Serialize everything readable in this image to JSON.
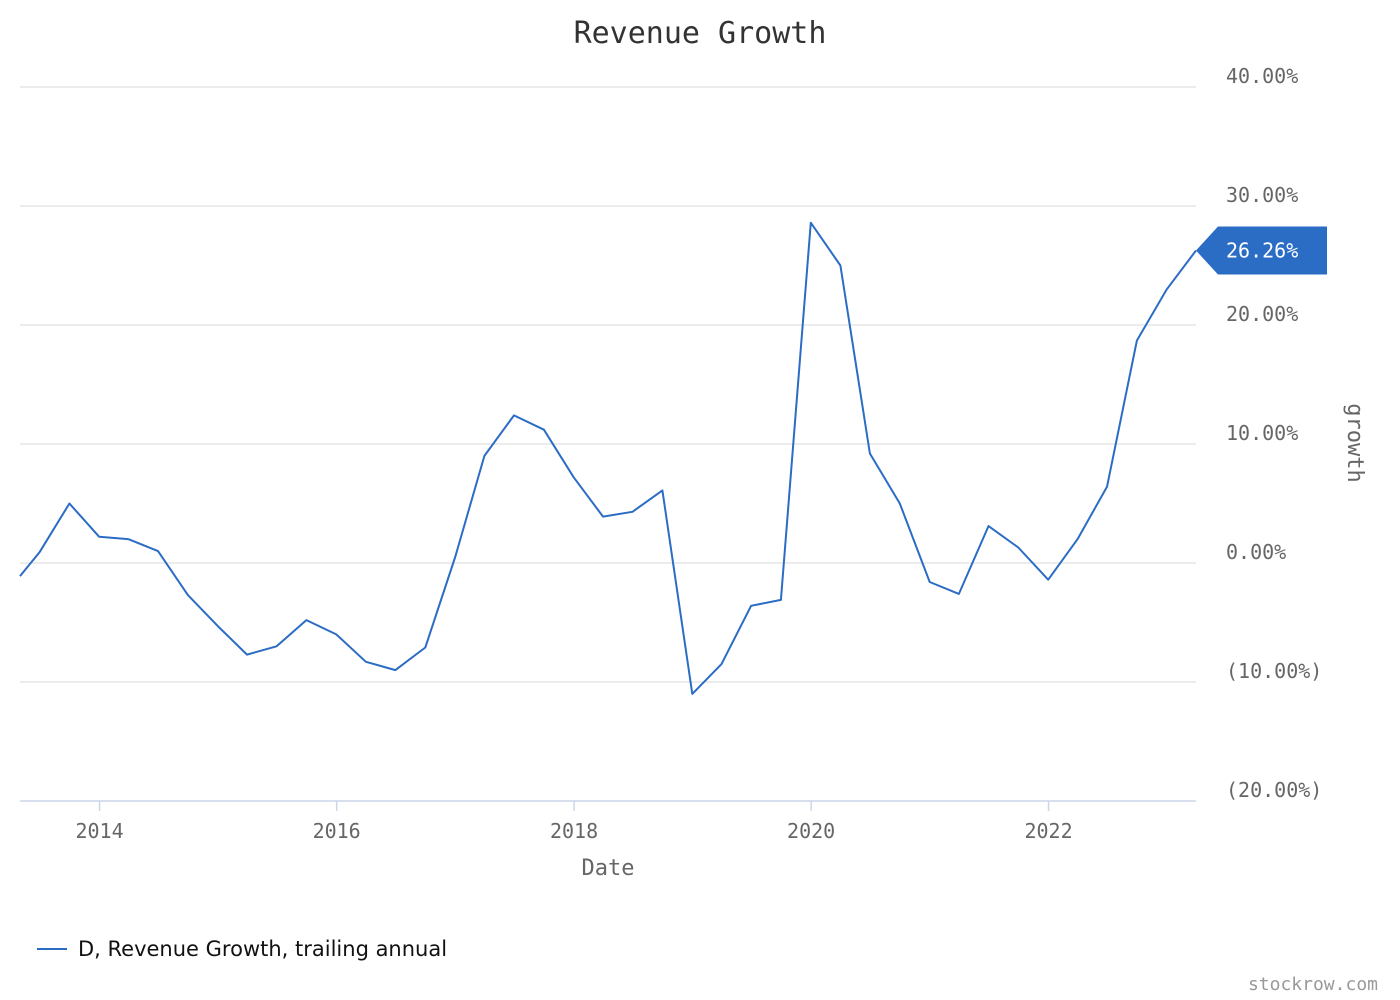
{
  "colors": {
    "line": "#2b6cc4",
    "grid": "#d8d8d8",
    "axis": "#ccd6eb",
    "badge": "#2b6cc4"
  },
  "credit": "stockrow.com",
  "chart_data": {
    "type": "line",
    "title": "Revenue Growth",
    "xlabel": "Date",
    "ylabel": "growth",
    "x_ticks": [
      "2014",
      "2016",
      "2018",
      "2020",
      "2022"
    ],
    "y_ticks": [
      "40.00%",
      "30.00%",
      "20.00%",
      "10.00%",
      "0.00%",
      "(10.00%)",
      "(20.00%)"
    ],
    "y_tick_values": [
      40,
      30,
      20,
      10,
      0,
      -10,
      -20
    ],
    "ylim": [
      -20,
      40
    ],
    "xlim": [
      "2013-05-01",
      "2023-03-31"
    ],
    "grid": true,
    "legend_position": "bottom-left",
    "last_value_label": "26.26%",
    "series": [
      {
        "name": "D, Revenue Growth, trailing annual",
        "points": [
          [
            "2013-05-01",
            -1.1
          ],
          [
            "2013-06-30",
            0.9
          ],
          [
            "2013-09-30",
            5.0
          ],
          [
            "2013-12-31",
            2.2
          ],
          [
            "2014-03-31",
            2.0
          ],
          [
            "2014-06-30",
            1.0
          ],
          [
            "2014-09-30",
            -2.7
          ],
          [
            "2014-12-31",
            -5.3
          ],
          [
            "2015-03-31",
            -7.7
          ],
          [
            "2015-06-30",
            -7.0
          ],
          [
            "2015-09-30",
            -4.8
          ],
          [
            "2015-12-31",
            -6.0
          ],
          [
            "2016-03-31",
            -8.3
          ],
          [
            "2016-06-30",
            -9.0
          ],
          [
            "2016-09-30",
            -7.1
          ],
          [
            "2016-12-31",
            0.5
          ],
          [
            "2017-03-31",
            9.0
          ],
          [
            "2017-06-30",
            12.4
          ],
          [
            "2017-09-30",
            11.2
          ],
          [
            "2017-12-31",
            7.2
          ],
          [
            "2018-03-31",
            3.9
          ],
          [
            "2018-06-30",
            4.3
          ],
          [
            "2018-09-30",
            6.1
          ],
          [
            "2018-12-31",
            -11.0
          ],
          [
            "2019-03-31",
            -8.5
          ],
          [
            "2019-06-30",
            -3.6
          ],
          [
            "2019-09-30",
            -3.1
          ],
          [
            "2019-12-31",
            28.6
          ],
          [
            "2020-03-31",
            25.0
          ],
          [
            "2020-06-30",
            9.2
          ],
          [
            "2020-09-30",
            5.0
          ],
          [
            "2020-12-31",
            -1.6
          ],
          [
            "2021-03-31",
            -2.6
          ],
          [
            "2021-06-30",
            3.1
          ],
          [
            "2021-09-30",
            1.3
          ],
          [
            "2021-12-31",
            -1.4
          ],
          [
            "2022-03-31",
            2.0
          ],
          [
            "2022-06-30",
            6.4
          ],
          [
            "2022-09-30",
            18.7
          ],
          [
            "2022-12-31",
            23.0
          ],
          [
            "2023-03-31",
            26.26
          ]
        ]
      }
    ]
  }
}
